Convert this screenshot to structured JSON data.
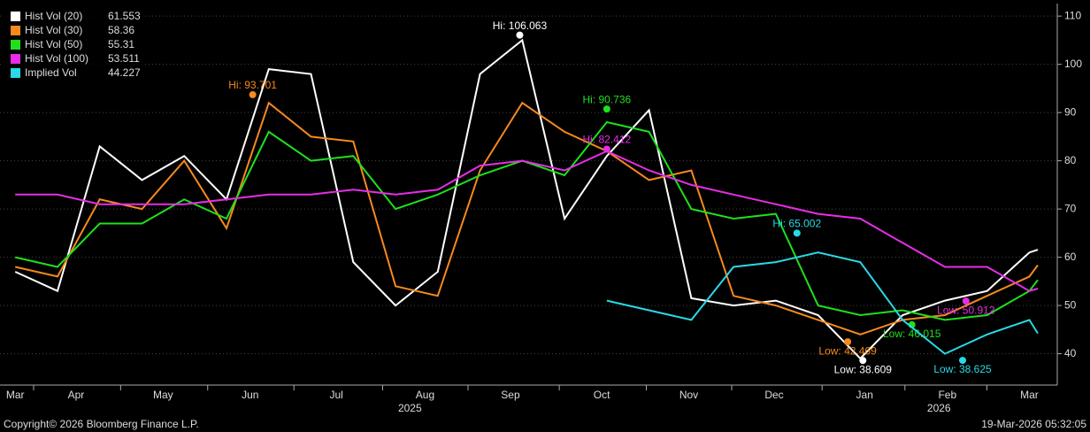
{
  "chart_data": {
    "type": "line",
    "x": [
      0,
      0.5,
      1,
      1.5,
      2,
      2.5,
      3,
      3.5,
      4,
      4.5,
      5,
      5.5,
      6,
      6.5,
      7,
      7.5,
      8,
      8.5,
      9,
      9.5,
      10,
      10.5,
      11,
      11.5,
      12,
      12.1
    ],
    "xlim": [
      -0.18,
      12.33
    ],
    "xticks": [
      {
        "value": 0,
        "label": "Mar"
      },
      {
        "value": 0.72,
        "label": "Apr"
      },
      {
        "value": 1.75,
        "label": "May"
      },
      {
        "value": 2.78,
        "label": "Jun"
      },
      {
        "value": 3.8,
        "label": "Jul"
      },
      {
        "value": 4.85,
        "label": "Aug"
      },
      {
        "value": 5.86,
        "label": "Sep"
      },
      {
        "value": 6.94,
        "label": "Oct"
      },
      {
        "value": 7.97,
        "label": "Nov"
      },
      {
        "value": 8.98,
        "label": "Dec"
      },
      {
        "value": 10.05,
        "label": "Jan"
      },
      {
        "value": 11.03,
        "label": "Feb"
      },
      {
        "value": 12.0,
        "label": "Mar"
      }
    ],
    "year_labels": [
      {
        "value": 4.67,
        "label": "2025"
      },
      {
        "value": 10.93,
        "label": "2026"
      }
    ],
    "ylim": [
      33.5,
      112.6
    ],
    "yticks": [
      40,
      50,
      60,
      70,
      80,
      90,
      100,
      110
    ],
    "grid": true,
    "series": [
      {
        "name": "Hist Vol (20)",
        "color": "#ffffff",
        "last": 61.553,
        "values": [
          57,
          53,
          83,
          76,
          81,
          72,
          99,
          98,
          59,
          50,
          57,
          98,
          105,
          68,
          81,
          90.5,
          51.5,
          50,
          51,
          48,
          39,
          48,
          51,
          53,
          61,
          61.553
        ],
        "annotations": [
          {
            "text": "Hi: 106.063",
            "x": 5.97,
            "value": 106.063
          },
          {
            "text": "Low: 38.609",
            "x": 10.03,
            "value": 38.609
          }
        ]
      },
      {
        "name": "Hist Vol (30)",
        "color": "#f7891f",
        "last": 58.36,
        "values": [
          58,
          56,
          72,
          70,
          80,
          66,
          92,
          85,
          84,
          54,
          52,
          78,
          92,
          86,
          82,
          76,
          78,
          52,
          50,
          47,
          44,
          47,
          48,
          52,
          56,
          58.36
        ],
        "annotations": [
          {
            "text": "Hi: 93.701",
            "x": 2.81,
            "value": 93.701
          },
          {
            "text": "Low: 42.469",
            "x": 9.85,
            "value": 42.469
          }
        ]
      },
      {
        "name": "Hist Vol (50)",
        "color": "#1ee01e",
        "last": 55.31,
        "values": [
          60,
          58,
          67,
          67,
          72,
          68,
          86,
          80,
          81,
          70,
          73,
          77,
          80,
          77,
          88,
          86,
          70,
          68,
          69,
          50,
          48,
          49,
          47,
          48,
          53,
          55.31
        ],
        "annotations": [
          {
            "text": "Hi: 90.736",
            "x": 7.0,
            "value": 90.736
          },
          {
            "text": "Low: 46.015",
            "x": 10.61,
            "value": 46.015
          }
        ]
      },
      {
        "name": "Hist Vol (100)",
        "color": "#e62ee6",
        "last": 53.511,
        "values": [
          73,
          73,
          71,
          71,
          71,
          72,
          73,
          73,
          74,
          73,
          74,
          79,
          80,
          78,
          82,
          78,
          75,
          73,
          71,
          69,
          68,
          63,
          58,
          58,
          53,
          53.511
        ],
        "annotations": [
          {
            "text": "Hi: 82.412",
            "x": 7.0,
            "value": 82.412
          },
          {
            "text": "Low: 50.912",
            "x": 11.25,
            "value": 50.912
          }
        ]
      },
      {
        "name": "Implied Vol",
        "color": "#29d9e6",
        "last": 44.227,
        "values": [
          null,
          null,
          null,
          null,
          null,
          null,
          null,
          null,
          null,
          null,
          null,
          null,
          null,
          null,
          51,
          49,
          47,
          58,
          59,
          61,
          59,
          47,
          40,
          44,
          47,
          44.227
        ],
        "annotations": [
          {
            "text": "Hi: 65.002",
            "x": 9.25,
            "value": 65.002
          },
          {
            "text": "Low: 38.625",
            "x": 11.21,
            "value": 38.625
          }
        ]
      }
    ],
    "copyright": "Copyright© 2026 Bloomberg Finance L.P.",
    "timestamp": "19-Mar-2026 05:32:05"
  }
}
